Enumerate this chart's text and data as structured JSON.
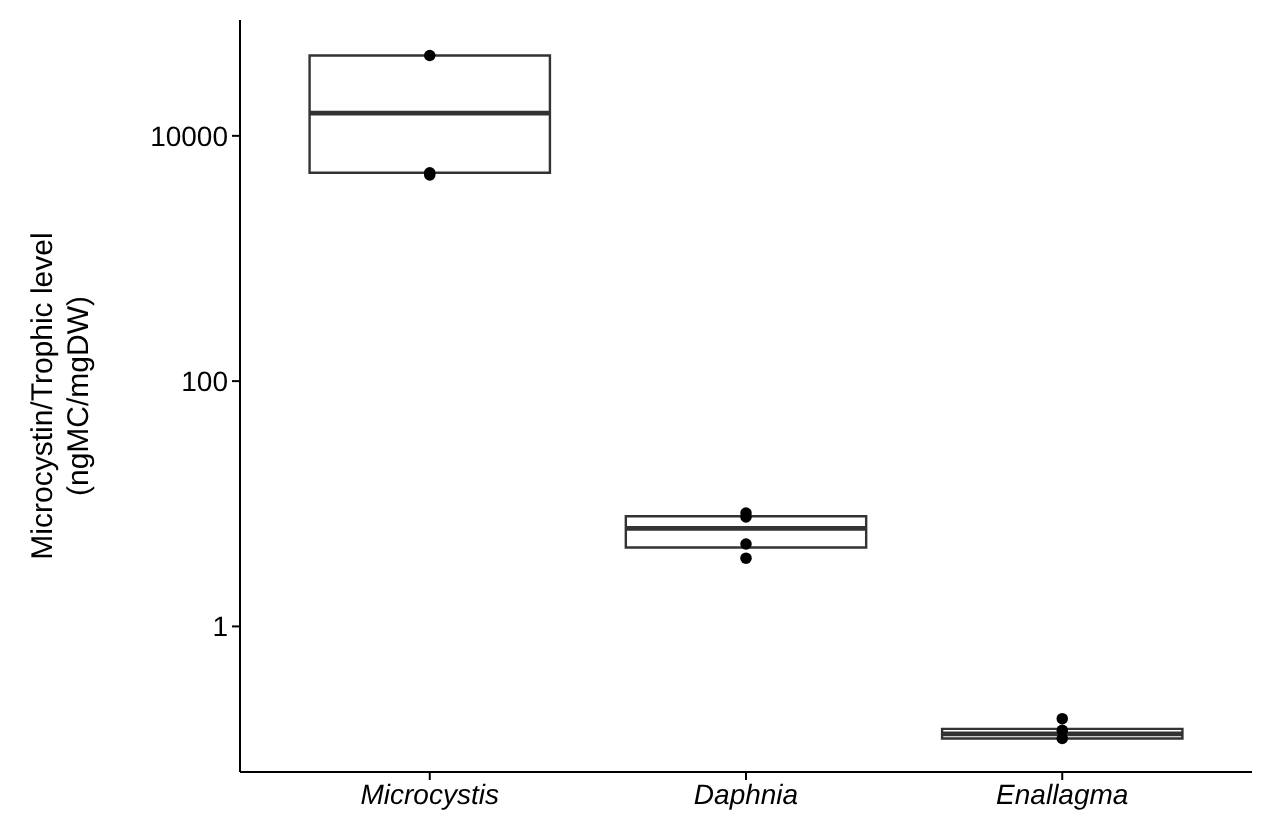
{
  "chart_data": {
    "type": "box",
    "ylabel": "Microcystin/Trophic level\n(ngMC/mgDW)",
    "categories": [
      "Microcystis",
      "Daphnia",
      "Enallagma"
    ],
    "boxes": [
      {
        "low": 5000,
        "q1": 5000,
        "median": 15300,
        "q3": 45200,
        "high": 45200
      },
      {
        "low": 4.4,
        "q1": 4.4,
        "median": 6.3,
        "q3": 7.9,
        "high": 7.9
      },
      {
        "low": 0.122,
        "q1": 0.122,
        "median": 0.133,
        "q3": 0.146,
        "high": 0.146
      }
    ],
    "series": [
      {
        "type": "scatter",
        "color": "#000000",
        "x": [
          "Microcystis",
          "Microcystis",
          "Microcystis",
          "Daphnia",
          "Daphnia",
          "Daphnia",
          "Daphnia",
          "Enallagma",
          "Enallagma",
          "Enallagma"
        ],
        "values": [
          45200,
          5000,
          4800,
          8.4,
          7.8,
          4.7,
          3.6,
          0.177,
          0.142,
          0.122
        ]
      }
    ],
    "log": "y",
    "ylim": [
      0.065,
      88000
    ],
    "yticks": [
      1,
      100,
      10000
    ],
    "grid": false,
    "marker": "circle"
  }
}
